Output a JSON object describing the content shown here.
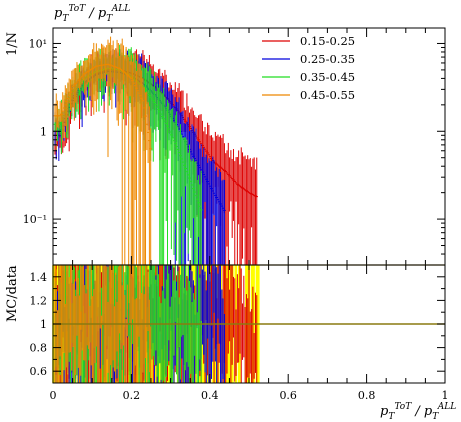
{
  "chart_data": [
    {
      "type": "line",
      "panel": "main",
      "title": "",
      "ylabel": "1/N",
      "yscale": "log",
      "ylim": [
        0.03,
        15
      ],
      "xlim": [
        0,
        1
      ],
      "title_label": "p_T^{ToT} / p_T^{ALL}",
      "y_tick_labels": [
        "10⁻¹",
        "1",
        "10¹"
      ],
      "y_tick_values": [
        0.1,
        1,
        10
      ],
      "legend": {
        "position": "top-right"
      },
      "series": [
        {
          "name": "0.15-0.25",
          "color": "#dd0000",
          "x": [
            0.02,
            0.05,
            0.08,
            0.11,
            0.14,
            0.17,
            0.2,
            0.23,
            0.26,
            0.29,
            0.32,
            0.35,
            0.38,
            0.41,
            0.44,
            0.47,
            0.5,
            0.52
          ],
          "y": [
            0.9,
            2.2,
            3.5,
            4.5,
            5.0,
            5.0,
            4.6,
            4.0,
            3.2,
            2.4,
            1.7,
            1.1,
            0.7,
            0.45,
            0.35,
            0.25,
            0.2,
            0.18
          ]
        },
        {
          "name": "0.25-0.35",
          "color": "#0000dd",
          "x": [
            0.02,
            0.05,
            0.08,
            0.11,
            0.14,
            0.17,
            0.2,
            0.23,
            0.26,
            0.29,
            0.32,
            0.35,
            0.38,
            0.41,
            0.44
          ],
          "y": [
            1.0,
            2.4,
            3.6,
            4.4,
            4.8,
            4.7,
            4.2,
            3.5,
            2.6,
            1.8,
            1.1,
            0.6,
            0.35,
            0.2,
            0.12
          ]
        },
        {
          "name": "0.35-0.45",
          "color": "#22dd22",
          "x": [
            0.02,
            0.05,
            0.08,
            0.11,
            0.14,
            0.17,
            0.2,
            0.23,
            0.26,
            0.29,
            0.32,
            0.35,
            0.38
          ],
          "y": [
            1.2,
            2.8,
            4.0,
            4.8,
            5.2,
            5.0,
            4.2,
            3.2,
            2.1,
            1.2,
            0.6,
            0.28,
            0.12
          ]
        },
        {
          "name": "0.45-0.55",
          "color": "#ee8800",
          "x": [
            0.02,
            0.05,
            0.08,
            0.11,
            0.14,
            0.17,
            0.2,
            0.23,
            0.25
          ],
          "y": [
            1.5,
            3.2,
            4.5,
            5.5,
            5.8,
            5.2,
            4.0,
            2.2,
            0.6
          ]
        }
      ]
    },
    {
      "type": "line",
      "panel": "ratio",
      "ylabel": "MC/data",
      "xlabel": "p_T^{ToT} / p_T^{ALL}",
      "ylim": [
        0.5,
        1.5
      ],
      "xlim": [
        0,
        1
      ],
      "x_tick_labels": [
        "0",
        "0.2",
        "0.4",
        "0.6",
        "0.8",
        "1"
      ],
      "x_tick_values": [
        0,
        0.2,
        0.4,
        0.6,
        0.8,
        1
      ],
      "y_tick_labels": [
        "0.6",
        "0.8",
        "1",
        "1.2",
        "1.4"
      ],
      "y_tick_values": [
        0.6,
        0.8,
        1.0,
        1.2,
        1.4
      ],
      "reference_line": 1.0,
      "band_color": "#ffff00",
      "band_xmax": 0.53
    }
  ]
}
